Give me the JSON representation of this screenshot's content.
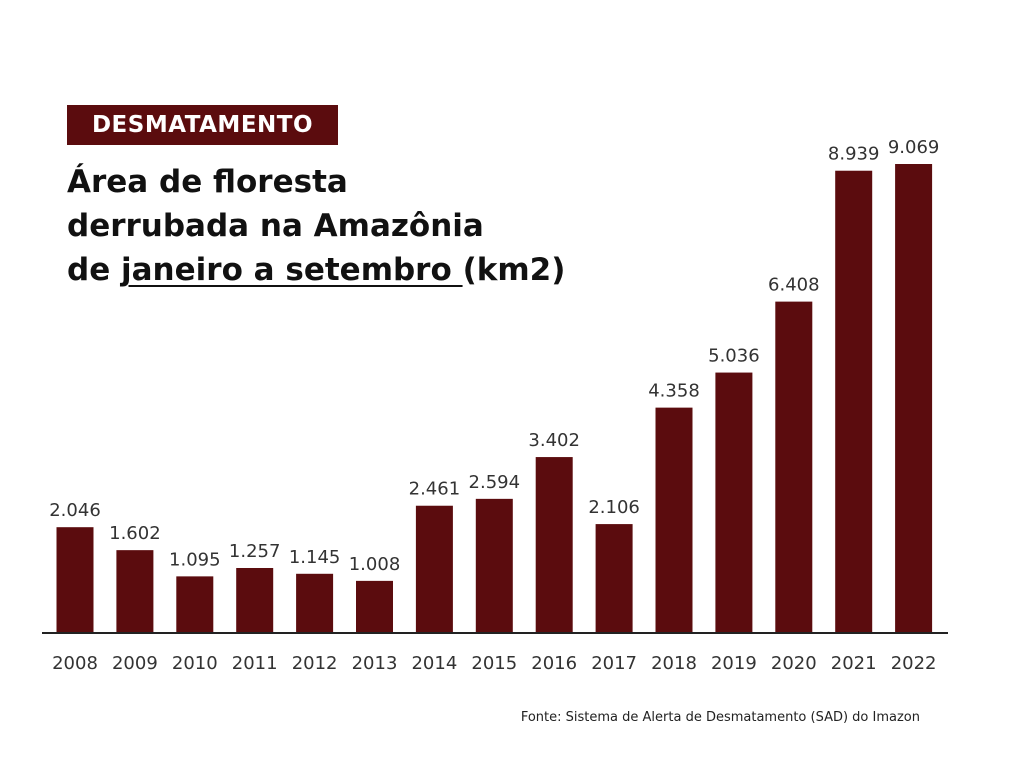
{
  "tag": "DESMATAMENTO",
  "title": {
    "line1": "Área de floresta",
    "line2": "derrubada na Amazônia",
    "line3_prefix": "de ",
    "line3_underlined": "janeiro a setembro ",
    "line3_suffix": "(km2)"
  },
  "source": "Fonte: Sistema de Alerta de Desmatamento (SAD) do Imazon",
  "colors": {
    "bar": "#5b0c0e",
    "axis": "#222222"
  },
  "chart_data": {
    "type": "bar",
    "title": "Área de floresta derrubada na Amazônia de janeiro a setembro (km2)",
    "categories": [
      "2008",
      "2009",
      "2010",
      "2011",
      "2012",
      "2013",
      "2014",
      "2015",
      "2016",
      "2017",
      "2018",
      "2019",
      "2020",
      "2021",
      "2022"
    ],
    "values": [
      2046,
      1602,
      1095,
      1257,
      1145,
      1008,
      2461,
      2594,
      3402,
      2106,
      4358,
      5036,
      6408,
      8939,
      9069
    ],
    "labels": [
      "2.046",
      "1.602",
      "1.095",
      "1.257",
      "1.145",
      "1.008",
      "2.461",
      "2.594",
      "3.402",
      "2.106",
      "4.358",
      "5.036",
      "6.408",
      "8.939",
      "9.069"
    ],
    "xlabel": "",
    "ylabel": "km2",
    "ylim": [
      0,
      9069
    ],
    "grid": false
  }
}
